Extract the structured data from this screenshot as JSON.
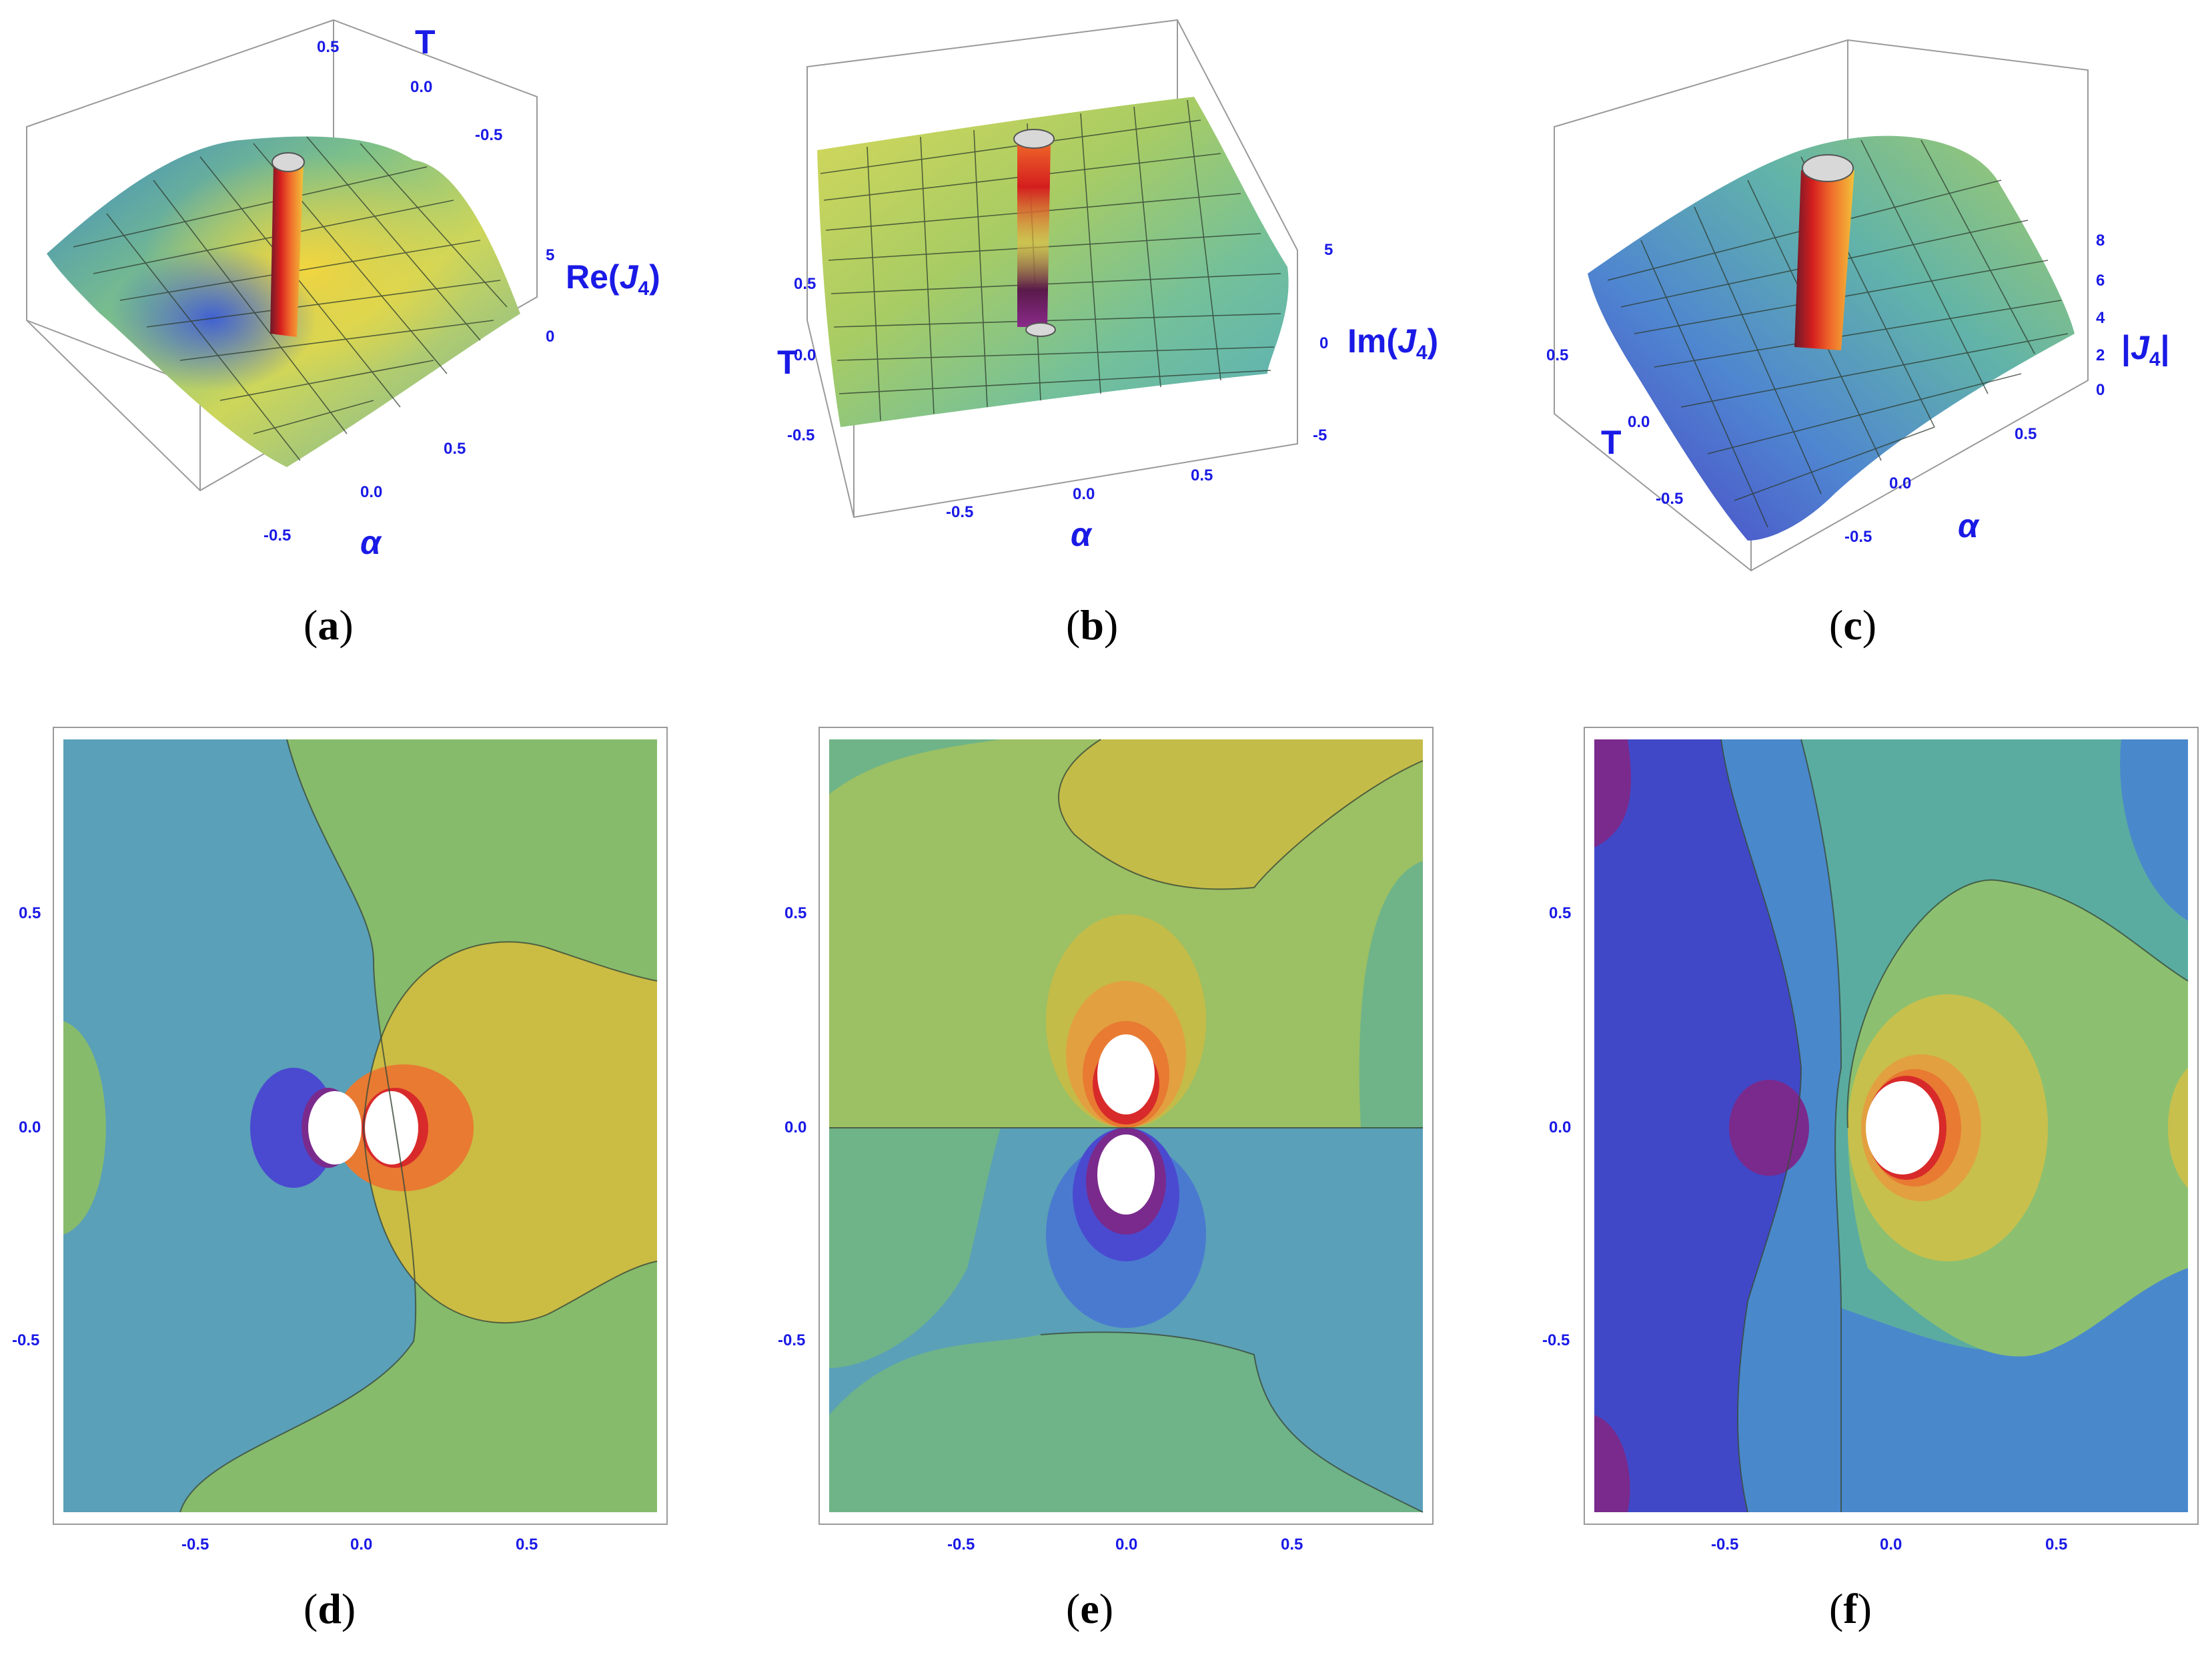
{
  "chart_data": [
    {
      "panel": "a",
      "type": "surface",
      "caption_letter": "a",
      "zlabel_prefix": "Re(",
      "zlabel_var": "J",
      "zlabel_sub": "4",
      "zlabel_suffix": ")",
      "xlabel": "α",
      "ylabel": "T",
      "x_ticks": [
        "-0.5",
        "0.0",
        "0.5"
      ],
      "y_ticks": [
        "0.5",
        "0.0",
        "-0.5"
      ],
      "z_ticks": [
        "5",
        "0"
      ],
      "colors": {
        "low": "#3d6bd6",
        "mid": "#8cc47a",
        "high": "#f0d23c",
        "peak": "#d81e1e"
      }
    },
    {
      "panel": "b",
      "type": "surface",
      "caption_letter": "b",
      "zlabel_prefix": "Im(",
      "zlabel_var": "J",
      "zlabel_sub": "4",
      "zlabel_suffix": ")",
      "xlabel": "α",
      "ylabel": "T",
      "x_ticks": [
        "-0.5",
        "0.0",
        "0.5"
      ],
      "y_ticks": [
        "0.5",
        "0.0",
        "-0.5"
      ],
      "z_ticks": [
        "5",
        "0",
        "-5"
      ],
      "colors": {
        "low": "#5aa0c8",
        "mid": "#9cc860",
        "high": "#e8d43c",
        "peak": "#d81e1e"
      }
    },
    {
      "panel": "c",
      "type": "surface",
      "caption_letter": "c",
      "zlabel_prefix": "|",
      "zlabel_var": "J",
      "zlabel_sub": "4",
      "zlabel_suffix": "|",
      "xlabel": "α",
      "ylabel": "T",
      "x_ticks": [
        "-0.5",
        "0.0",
        "0.5"
      ],
      "y_ticks": [
        "0.5",
        "0.0",
        "-0.5"
      ],
      "z_ticks": [
        "8",
        "6",
        "4",
        "2",
        "0"
      ],
      "colors": {
        "low": "#4a3ec8",
        "mid": "#5fa8c0",
        "high": "#c8d44a",
        "peak": "#d81e1e"
      }
    },
    {
      "panel": "d",
      "type": "contour",
      "caption_letter": "d",
      "x_ticks": [
        "-0.5",
        "0.0",
        "0.5"
      ],
      "y_ticks": [
        "0.5",
        "0.0",
        "-0.5"
      ],
      "xlim": [
        -0.9,
        0.9
      ],
      "ylim": [
        -0.9,
        0.9
      ],
      "pole": [
        0.0,
        0.0
      ],
      "colors": [
        "#5aa0b8",
        "#87bb6c",
        "#cbbc44",
        "#e87a32",
        "#4a4ad0",
        "#7a2a8c",
        "#d82a2a"
      ]
    },
    {
      "panel": "e",
      "type": "contour",
      "caption_letter": "e",
      "x_ticks": [
        "-0.5",
        "0.0",
        "0.5"
      ],
      "y_ticks": [
        "0.5",
        "0.0",
        "-0.5"
      ],
      "xlim": [
        -0.9,
        0.9
      ],
      "ylim": [
        -0.9,
        0.9
      ],
      "pole": [
        0.0,
        0.0
      ],
      "colors": [
        "#6fb488",
        "#9cc064",
        "#c4bc48",
        "#e2a040",
        "#e87a32",
        "#d82a2a",
        "#5aa0b8",
        "#4a7ad0",
        "#4a4ad0",
        "#7a2a8c"
      ]
    },
    {
      "panel": "f",
      "type": "contour",
      "caption_letter": "f",
      "x_ticks": [
        "-0.5",
        "0.0",
        "0.5"
      ],
      "y_ticks": [
        "0.5",
        "0.0",
        "-0.5"
      ],
      "xlim": [
        -0.9,
        0.9
      ],
      "ylim": [
        -0.9,
        0.9
      ],
      "pole": [
        0.05,
        0.0
      ],
      "colors": [
        "#4048c8",
        "#4a88cc",
        "#5aaca0",
        "#8cc070",
        "#c8c04c",
        "#e2a040",
        "#e87a32",
        "#d82a2a",
        "#7a2a8c"
      ]
    }
  ]
}
